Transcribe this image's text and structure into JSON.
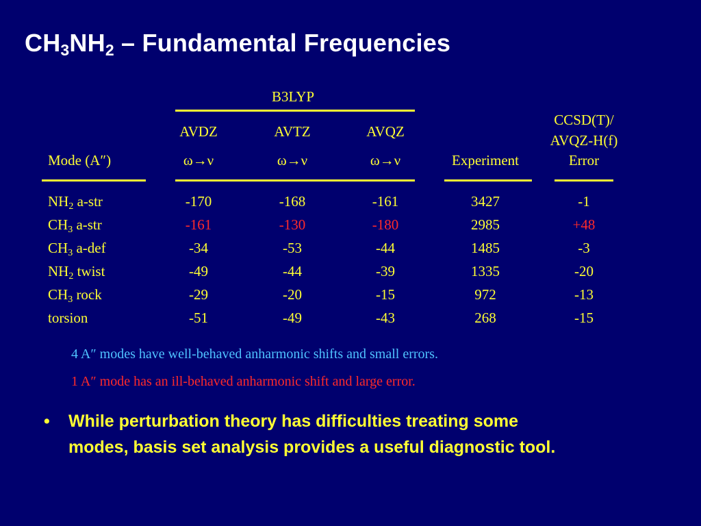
{
  "title": {
    "p1": "CH",
    "s1": "3",
    "p2": "NH",
    "s2": "2",
    "p3": " – Fundamental Frequencies"
  },
  "table": {
    "group_header": "B3LYP",
    "basis": [
      "AVDZ",
      "AVTZ",
      "AVQZ"
    ],
    "omega_nu": "ω→ν",
    "mode_header": "Mode (A″)",
    "experiment_header": "Experiment",
    "ccsd_header": [
      "CCSD(T)/",
      "AVQZ-H(f)",
      "Error"
    ],
    "rows": [
      {
        "mode": {
          "a": "NH",
          "sub": "2",
          "b": " a-str"
        },
        "avdz": "-170",
        "avtz": "-168",
        "avqz": "-161",
        "exp": "3427",
        "err": "-1"
      },
      {
        "mode": {
          "a": "CH",
          "sub": "3",
          "b": " a-str"
        },
        "avdz": "-161",
        "avtz": "-130",
        "avqz": "-180",
        "exp": "2985",
        "err": "+48"
      },
      {
        "mode": {
          "a": "CH",
          "sub": "3",
          "b": " a-def"
        },
        "avdz": "-34",
        "avtz": "-53",
        "avqz": "-44",
        "exp": "1485",
        "err": "-3"
      },
      {
        "mode": {
          "a": "NH",
          "sub": "2",
          "b": " twist"
        },
        "avdz": "-49",
        "avtz": "-44",
        "avqz": "-39",
        "exp": "1335",
        "err": "-20"
      },
      {
        "mode": {
          "a": "CH",
          "sub": "3",
          "b": " rock"
        },
        "avdz": "-29",
        "avtz": "-20",
        "avqz": "-15",
        "exp": "972",
        "err": "-13"
      },
      {
        "mode": {
          "a": "torsion",
          "sub": "",
          "b": ""
        },
        "avdz": "-51",
        "avtz": "-49",
        "avqz": "-43",
        "exp": "268",
        "err": "-15"
      }
    ]
  },
  "notes": {
    "good": "4 A″ modes have well-behaved anharmonic shifts and small errors.",
    "bad": "1 A″ mode has an ill-behaved anharmonic shift and large error."
  },
  "bullet": {
    "symbol": "•",
    "line1": "While perturbation theory has difficulties treating some",
    "line2": "modes, basis set analysis provides a useful diagnostic tool."
  },
  "colors": {
    "background": "#00006e",
    "title": "#ffffff",
    "text": "#ffff33",
    "highlight": "#ff2a2a",
    "note_good": "#4fc3ff"
  }
}
